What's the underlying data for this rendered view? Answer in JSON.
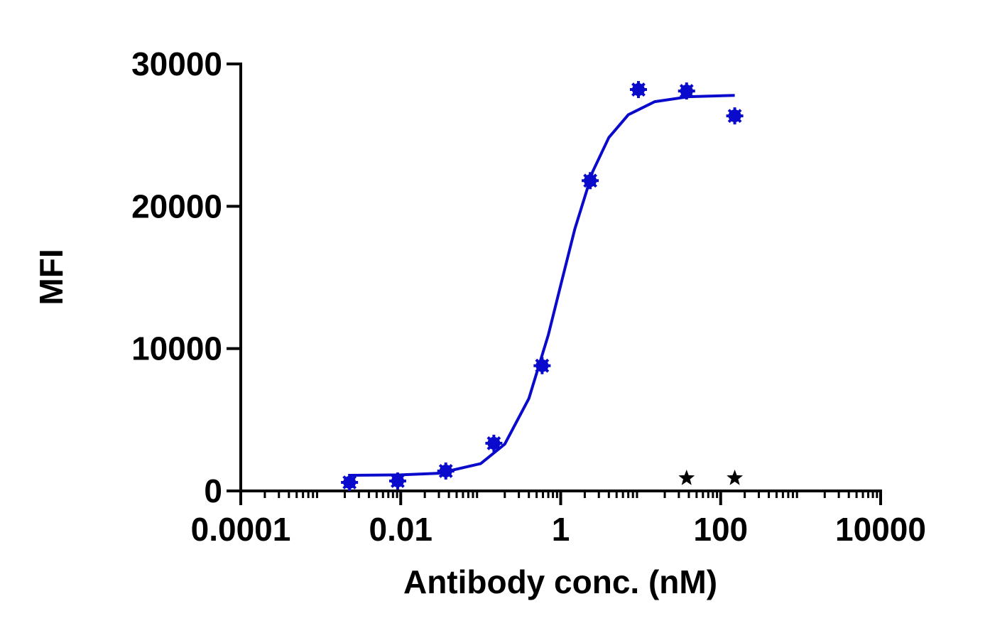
{
  "chart_data": {
    "type": "scatter",
    "xlabel": "Antibody conc. (nM)",
    "ylabel": "MFI",
    "xscale": "log",
    "xlim": [
      0.0001,
      10000
    ],
    "xticks": [
      {
        "value": 0.0001,
        "label": "0.0001"
      },
      {
        "value": 0.01,
        "label": "0.01"
      },
      1,
      100,
      10000
    ],
    "ylim": [
      0,
      30000
    ],
    "yticks": [
      0,
      10000,
      20000,
      30000
    ],
    "series": [
      {
        "marker": "asterisk",
        "color": "#0a0acc",
        "x": [
          0.00229,
          0.00916,
          0.0366,
          0.146,
          0.586,
          2.34,
          9.375,
          37.5,
          150
        ],
        "values": [
          600,
          700,
          1400,
          3350,
          8800,
          21800,
          28200,
          28100,
          26350
        ]
      },
      {
        "marker": "star",
        "color": "#000000",
        "x": [
          37.5,
          150
        ],
        "values": [
          700,
          700
        ]
      },
      {
        "marker": "line",
        "color": "#0a0acc",
        "x": [
          0.00229,
          0.01,
          0.03,
          0.1,
          0.2,
          0.4,
          0.7,
          1,
          1.5,
          2.5,
          4,
          7,
          15,
          40,
          150
        ],
        "values": [
          1100,
          1130,
          1240,
          1920,
          3290,
          6490,
          10960,
          14450,
          18390,
          22410,
          24830,
          26430,
          27350,
          27700,
          27790
        ]
      }
    ]
  }
}
